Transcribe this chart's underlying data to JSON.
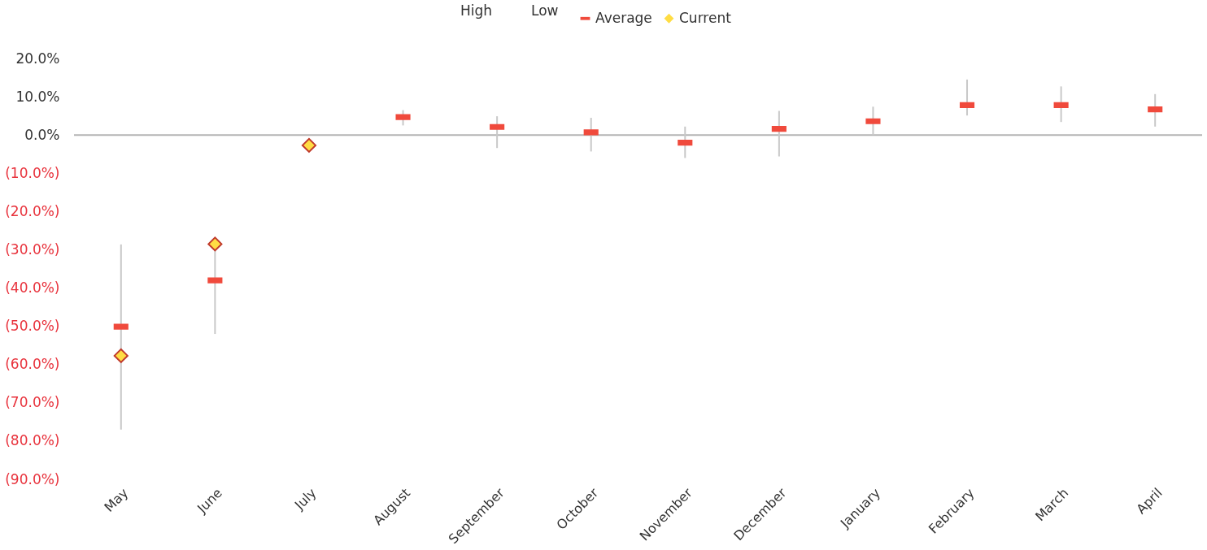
{
  "chart_data": {
    "type": "scatter",
    "categories": [
      "May",
      "June",
      "July",
      "August",
      "September",
      "October",
      "November",
      "December",
      "January",
      "February",
      "March",
      "April"
    ],
    "series": [
      {
        "name": "Average",
        "color": "#f04a3c",
        "values": [
          -50.1,
          -38,
          null,
          4.7,
          2.1,
          0.7,
          -2.0,
          1.6,
          3.6,
          7.8,
          7.8,
          6.7
        ],
        "errors": [
          [
            -77,
            -28.6
          ],
          [
            -52,
            -28.5
          ],
          null,
          [
            2.5,
            6.5
          ],
          [
            -3.4,
            4.9
          ],
          [
            -4.3,
            4.5
          ],
          [
            -6.0,
            2.2
          ],
          [
            -5.6,
            6.3
          ],
          [
            0,
            7.4
          ],
          [
            5.1,
            14.5
          ],
          [
            3.4,
            12.7
          ],
          [
            2.2,
            10.7
          ]
        ]
      },
      {
        "name": "Current",
        "color": "#ffdd44",
        "marker": "diamond",
        "values": [
          -57.7,
          -28.5,
          -2.7,
          null,
          null,
          null,
          null,
          null,
          null,
          null,
          null,
          null
        ]
      }
    ],
    "annotations": [
      "High",
      "Low"
    ],
    "ylim": [
      -90,
      20
    ],
    "yticks": [
      {
        "value": 20,
        "label": "20.0%"
      },
      {
        "value": 10,
        "label": "10.0%"
      },
      {
        "value": 0,
        "label": "0.0%"
      },
      {
        "value": -10,
        "label": "(10.0%)"
      },
      {
        "value": -20,
        "label": "(20.0%)"
      },
      {
        "value": -30,
        "label": "(30.0%)"
      },
      {
        "value": -40,
        "label": "(40.0%)"
      },
      {
        "value": -50,
        "label": "(50.0%)"
      },
      {
        "value": -60,
        "label": "(60.0%)"
      },
      {
        "value": -70,
        "label": "(70.0%)"
      },
      {
        "value": -80,
        "label": "(80.0%)"
      },
      {
        "value": -90,
        "label": "(90.0%)"
      }
    ],
    "ref_lines": [
      {
        "axis": "y",
        "value": 0,
        "color": "#b4b4b4"
      }
    ],
    "grid": false,
    "legend": "top"
  }
}
